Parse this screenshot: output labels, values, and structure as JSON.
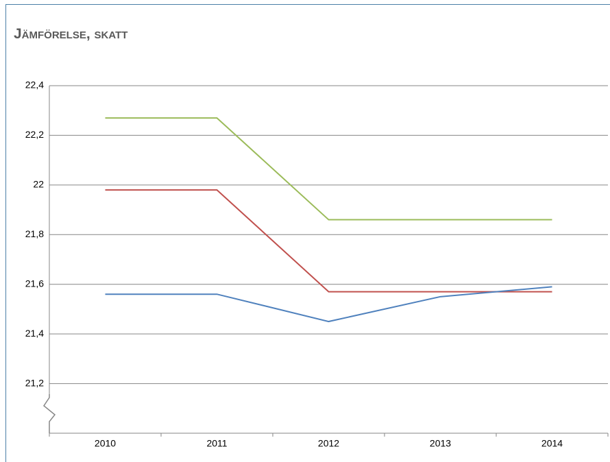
{
  "chart_data": {
    "type": "line",
    "title": "Jämförelse, skatt",
    "categories": [
      "2010",
      "2011",
      "2012",
      "2013",
      "2014"
    ],
    "series": [
      {
        "color": "#9bbb59",
        "values": [
          22.27,
          22.27,
          21.86,
          21.86,
          21.86
        ]
      },
      {
        "color": "#c0504d",
        "values": [
          21.98,
          21.98,
          21.57,
          21.57,
          21.57
        ]
      },
      {
        "color": "#4f81bd",
        "values": [
          21.56,
          21.56,
          21.45,
          21.55,
          21.59
        ]
      }
    ],
    "ylim": [
      21,
      22.4
    ],
    "yticks": [
      {
        "value": 21.2,
        "label": "21,2"
      },
      {
        "value": 21.4,
        "label": "21,4"
      },
      {
        "value": 21.6,
        "label": "21,6"
      },
      {
        "value": 21.8,
        "label": "21,8"
      },
      22,
      {
        "value": 22.2,
        "label": "22,2"
      },
      {
        "value": 22.4,
        "label": "22,4"
      }
    ],
    "grid": true
  }
}
